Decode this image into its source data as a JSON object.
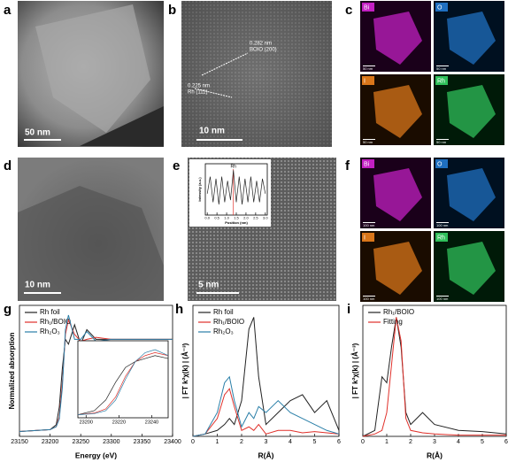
{
  "panels": {
    "a": {
      "label": "a",
      "scale": "50 nm"
    },
    "b": {
      "label": "b",
      "scale": "10 nm",
      "annotations": [
        "0.282 nm",
        "BOIO (200)",
        "0.225 nm",
        "Rh (111)"
      ]
    },
    "c": {
      "label": "c",
      "tiles": [
        {
          "element": "Bi",
          "scale": "50 nm"
        },
        {
          "element": "O",
          "scale": "50 nm"
        },
        {
          "element": "I",
          "scale": "50 nm"
        },
        {
          "element": "Rh",
          "scale": "50 nm"
        }
      ]
    },
    "d": {
      "label": "d",
      "scale": "10 nm"
    },
    "e": {
      "label": "e",
      "scale": "5 nm"
    },
    "f": {
      "label": "f",
      "tiles": [
        {
          "element": "Bi",
          "scale": "100 nm"
        },
        {
          "element": "O",
          "scale": "100 nm"
        },
        {
          "element": "I",
          "scale": "100 nm"
        },
        {
          "element": "Rh",
          "scale": "100 nm"
        }
      ]
    },
    "g": {
      "label": "g"
    },
    "h": {
      "label": "h"
    },
    "i": {
      "label": "i"
    }
  },
  "chart_data": [
    {
      "type": "line",
      "xlabel": "Energy (eV)",
      "ylabel": "Normalized absorption",
      "xlim": [
        23150,
        23400
      ],
      "ylim": [
        0,
        1.35
      ],
      "xticks": [
        23150,
        23200,
        23250,
        23300,
        23350,
        23400
      ],
      "x": [
        23150,
        23200,
        23210,
        23215,
        23220,
        23225,
        23230,
        23240,
        23250,
        23260,
        23275,
        23300,
        23350,
        23400
      ],
      "series": [
        {
          "name": "Rh foil",
          "color": "#222222",
          "values": [
            0.05,
            0.07,
            0.12,
            0.3,
            0.7,
            1.0,
            0.95,
            1.15,
            0.95,
            1.1,
            1.0,
            1.0,
            1.0,
            1.0
          ]
        },
        {
          "name": "Rh₁/BOIO",
          "color": "#e0302a",
          "values": [
            0.05,
            0.07,
            0.1,
            0.2,
            0.55,
            1.05,
            1.2,
            1.05,
            0.98,
            1.0,
            1.02,
            1.0,
            1.0,
            1.0
          ]
        },
        {
          "name": "Rh₂O₃",
          "color": "#2a7fa8",
          "values": [
            0.05,
            0.07,
            0.1,
            0.18,
            0.5,
            1.1,
            1.25,
            1.0,
            1.0,
            1.08,
            0.98,
            1.0,
            1.0,
            1.0
          ]
        }
      ],
      "legend": "upper left"
    },
    {
      "type": "line",
      "xlim": [
        23195,
        23250
      ],
      "ylim": [
        0,
        1.3
      ],
      "xticks": [
        23200,
        23220,
        23240
      ],
      "x": [
        23195,
        23205,
        23212,
        23218,
        23224,
        23230,
        23236,
        23242,
        23250
      ],
      "series": [
        {
          "color": "#222222",
          "values": [
            0.05,
            0.12,
            0.3,
            0.6,
            0.85,
            0.95,
            1.0,
            1.05,
            1.0
          ]
        },
        {
          "color": "#e0302a",
          "values": [
            0.05,
            0.08,
            0.15,
            0.35,
            0.7,
            0.95,
            1.05,
            1.1,
            1.05
          ]
        },
        {
          "color": "#2a7fa8",
          "values": [
            0.05,
            0.07,
            0.12,
            0.3,
            0.65,
            0.95,
            1.1,
            1.15,
            1.05
          ]
        }
      ]
    },
    {
      "type": "line",
      "xlabel": "R(Å)",
      "ylabel": "| FT k²χ(k) | (Å⁻³)",
      "xlim": [
        0,
        6
      ],
      "ylim": [
        0,
        1.1
      ],
      "xticks": [
        0,
        1,
        2,
        3,
        4,
        5,
        6
      ],
      "x": [
        0,
        0.5,
        1.0,
        1.3,
        1.5,
        1.7,
        2.0,
        2.3,
        2.5,
        2.7,
        3.0,
        3.5,
        4.0,
        4.5,
        5.0,
        5.5,
        6.0
      ],
      "series": [
        {
          "name": "Rh foil",
          "color": "#222222",
          "values": [
            0,
            0.02,
            0.05,
            0.1,
            0.15,
            0.1,
            0.3,
            0.9,
            1.0,
            0.5,
            0.1,
            0.2,
            0.3,
            0.35,
            0.2,
            0.3,
            0.05
          ]
        },
        {
          "name": "Rh₁/BOIO",
          "color": "#e0302a",
          "values": [
            0,
            0.02,
            0.15,
            0.35,
            0.4,
            0.25,
            0.05,
            0.08,
            0.05,
            0.1,
            0.02,
            0.05,
            0.05,
            0.03,
            0.04,
            0.03,
            0.02
          ]
        },
        {
          "name": "Rh₂O₃",
          "color": "#2a7fa8",
          "values": [
            0,
            0.02,
            0.2,
            0.45,
            0.5,
            0.3,
            0.08,
            0.2,
            0.15,
            0.25,
            0.2,
            0.3,
            0.2,
            0.15,
            0.1,
            0.05,
            0.02
          ]
        }
      ],
      "legend": "upper left"
    },
    {
      "type": "line",
      "xlabel": "R(Å)",
      "ylabel": "| FT k²χ(k) | (Å⁻³)",
      "xlim": [
        0,
        6
      ],
      "ylim": [
        0,
        1.1
      ],
      "xticks": [
        0,
        1,
        2,
        3,
        4,
        5,
        6
      ],
      "x": [
        0,
        0.5,
        0.8,
        1.0,
        1.2,
        1.4,
        1.6,
        1.8,
        2.0,
        2.5,
        3.0,
        4.0,
        5.0,
        6.0
      ],
      "series": [
        {
          "name": "Rh₁/BOIO",
          "color": "#222222",
          "values": [
            0,
            0.05,
            0.5,
            0.45,
            0.75,
            1.0,
            0.75,
            0.2,
            0.1,
            0.2,
            0.1,
            0.05,
            0.04,
            0.02
          ]
        },
        {
          "name": "Fitting",
          "color": "#e0302a",
          "values": [
            0,
            0.02,
            0.05,
            0.2,
            0.6,
            1.0,
            0.8,
            0.15,
            0.05,
            0.03,
            0.02,
            0.01,
            0.01,
            0.01
          ]
        }
      ],
      "legend": "upper left"
    },
    {
      "type": "line",
      "xlabel": "Position (nm)",
      "ylabel": "Intensity (a.u.)",
      "annotation": "Rh",
      "xlim": [
        -0.1,
        3.1
      ],
      "ylim": [
        0,
        1.2
      ],
      "xticks": [
        {
          "value": 0,
          "label": "0.0"
        },
        0.5,
        {
          "value": 1,
          "label": "1.0"
        },
        1.5,
        {
          "value": 2,
          "label": "2.0"
        },
        2.5,
        {
          "value": 3,
          "label": "3.0"
        }
      ],
      "x": [
        0,
        0.15,
        0.3,
        0.45,
        0.6,
        0.75,
        0.9,
        1.05,
        1.2,
        1.35,
        1.5,
        1.65,
        1.8,
        1.95,
        2.1,
        2.25,
        2.4,
        2.55,
        2.7,
        2.85,
        3.0
      ],
      "series": [
        {
          "color": "#222222",
          "values": [
            0.5,
            0.9,
            0.3,
            0.85,
            0.25,
            0.9,
            0.3,
            0.8,
            0.35,
            1.05,
            0.3,
            0.9,
            0.25,
            0.85,
            0.3,
            0.9,
            0.3,
            0.8,
            0.3,
            0.85,
            0.5
          ]
        }
      ]
    }
  ]
}
